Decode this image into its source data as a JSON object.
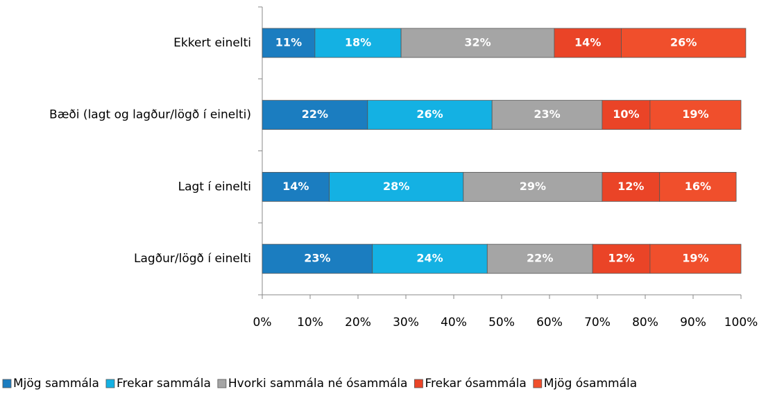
{
  "chart_data": {
    "type": "stacked-barh",
    "categories": [
      "Ekkert einelti",
      "Bæði (lagt og lagður/lögð í einelti)",
      "Lagt í einelti",
      "Lagður/lögð í einelti"
    ],
    "series": [
      {
        "name": "Mjög sammála",
        "color": "#1b7dc0",
        "values": [
          11,
          22,
          14,
          23
        ],
        "value_labels": [
          "11%",
          "22%",
          "14%",
          "23%"
        ]
      },
      {
        "name": "Frekar sammála",
        "color": "#14b1e3",
        "values": [
          18,
          26,
          28,
          24
        ],
        "value_labels": [
          "18%",
          "26%",
          "28%",
          "24%"
        ]
      },
      {
        "name": "Hvorki sammála né ósammála",
        "color": "#a5a5a5",
        "values": [
          32,
          23,
          29,
          22
        ],
        "value_labels": [
          "32%",
          "23%",
          "29%",
          "22%"
        ]
      },
      {
        "name": "Frekar ósammála",
        "color": "#ea4427",
        "values": [
          14,
          10,
          12,
          12
        ],
        "value_labels": [
          "14%",
          "10%",
          "12%",
          "12%"
        ]
      },
      {
        "name": "Mjög ósammála",
        "color": "#f04f2c",
        "values": [
          26,
          19,
          16,
          19
        ],
        "value_labels": [
          "26%",
          "19%",
          "16%",
          "19%"
        ]
      }
    ],
    "xlim": [
      0,
      100
    ],
    "xticks": [
      {
        "value": 0,
        "label": "0%"
      },
      {
        "value": 10,
        "label": "10%"
      },
      {
        "value": 20,
        "label": "20%"
      },
      {
        "value": 30,
        "label": "30%"
      },
      {
        "value": 40,
        "label": "40%"
      },
      {
        "value": 50,
        "label": "50%"
      },
      {
        "value": 60,
        "label": "60%"
      },
      {
        "value": 70,
        "label": "70%"
      },
      {
        "value": 80,
        "label": "80%"
      },
      {
        "value": 90,
        "label": "90%"
      },
      {
        "value": 100,
        "label": "100%"
      }
    ],
    "legend": "bottom",
    "grid": false
  }
}
